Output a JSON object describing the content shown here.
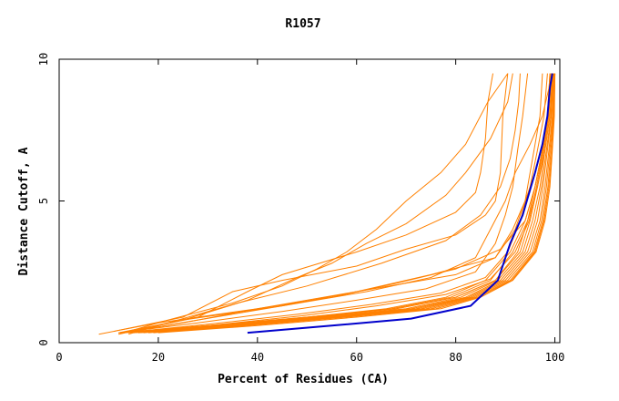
{
  "chart_data": {
    "type": "line",
    "title": "R1057",
    "xlabel": "Percent of Residues (CA)",
    "ylabel": "Distance Cutoff, A",
    "xlim": [
      0,
      101
    ],
    "ylim": [
      0,
      10
    ],
    "x_ticks": [
      0,
      20,
      40,
      60,
      80,
      100
    ],
    "y_ticks": [
      0,
      5,
      10
    ],
    "grid": false,
    "legend": "none",
    "colors": {
      "highlight": "#0000cc",
      "others": "#ff8000",
      "axis": "#000000"
    },
    "highlight": {
      "x": [
        38,
        55,
        71,
        83,
        88.5,
        91,
        93.5,
        96,
        97.5,
        98.5,
        99,
        99.5
      ],
      "y": [
        0.35,
        0.6,
        0.85,
        1.3,
        2.2,
        3.5,
        4.5,
        6.0,
        7.0,
        8.0,
        9.0,
        9.5
      ]
    },
    "series": [
      {
        "x": [
          8,
          20,
          40,
          60,
          80,
          88,
          91.5,
          94,
          96,
          97.5,
          98.6,
          99.3
        ],
        "y": [
          0.3,
          0.7,
          1.2,
          1.8,
          2.4,
          3,
          4,
          5,
          6,
          7,
          8,
          9.5
        ]
      },
      {
        "x": [
          11,
          25,
          35,
          45,
          60,
          70,
          80,
          86,
          88,
          89,
          89.5,
          90.5
        ],
        "y": [
          0.4,
          0.9,
          1.8,
          2.2,
          2.7,
          3.3,
          3.8,
          4.5,
          5,
          6,
          8,
          9.5
        ]
      },
      {
        "x": [
          13,
          28,
          38,
          45,
          60,
          70,
          80,
          84,
          85,
          86,
          86.5,
          87.5
        ],
        "y": [
          0.35,
          0.9,
          1.8,
          2.4,
          3.2,
          3.8,
          4.6,
          5.3,
          6,
          7.2,
          8.5,
          9.5
        ]
      },
      {
        "x": [
          12,
          25,
          38,
          48,
          55,
          62,
          70,
          78,
          82,
          87,
          90.5,
          91.5
        ],
        "y": [
          0.3,
          0.8,
          1.5,
          2.3,
          2.8,
          3.5,
          4.2,
          5.2,
          6,
          7.2,
          8.5,
          9.5
        ]
      },
      {
        "x": [
          12,
          25,
          45,
          60,
          75,
          88,
          92,
          94,
          95,
          96,
          97,
          97.5
        ],
        "y": [
          0.35,
          0.8,
          1.3,
          1.8,
          2.4,
          3,
          4,
          5,
          6,
          7,
          8,
          9.5
        ]
      },
      {
        "x": [
          12,
          22,
          35,
          45,
          52,
          58,
          64,
          70,
          77,
          82,
          86.5,
          90.5
        ],
        "y": [
          0.3,
          0.8,
          1.4,
          2,
          2.6,
          3.2,
          4,
          5,
          6,
          7,
          8.5,
          9.5
        ]
      },
      {
        "x": [
          13,
          25,
          40,
          55,
          68,
          80,
          89,
          94,
          96,
          97.5,
          98.5,
          99
        ],
        "y": [
          0.35,
          0.7,
          1.2,
          1.6,
          2.1,
          2.6,
          3.3,
          4.3,
          5.5,
          6.8,
          8,
          9.5
        ]
      },
      {
        "x": [
          14,
          24,
          36,
          50,
          65,
          78,
          85,
          89,
          91,
          92,
          92.7,
          93
        ],
        "y": [
          0.3,
          0.8,
          1.4,
          2,
          2.8,
          3.6,
          4.5,
          5.5,
          6.5,
          7.5,
          8.5,
          9.5
        ]
      },
      {
        "x": [
          13,
          28,
          45,
          62,
          75,
          84,
          87,
          90,
          92,
          95,
          97.5,
          99.5
        ],
        "y": [
          0.35,
          0.8,
          1.3,
          1.8,
          2.3,
          3,
          4,
          5,
          6,
          7,
          8,
          9.5
        ]
      },
      {
        "x": [
          12,
          30,
          50,
          68,
          80,
          88,
          92.5,
          94.5,
          96,
          97.5,
          98.5,
          99
        ],
        "y": [
          0.35,
          0.6,
          0.9,
          1.2,
          1.6,
          2.2,
          3.2,
          4.3,
          5.5,
          6.8,
          8,
          9.5
        ]
      },
      {
        "x": [
          12,
          30,
          50,
          68,
          80,
          88,
          93,
          95,
          96.5,
          97.8,
          98.8,
          99.3
        ],
        "y": [
          0.35,
          0.6,
          0.9,
          1.2,
          1.6,
          2.2,
          3.2,
          4.3,
          5.5,
          6.8,
          8,
          9.5
        ]
      },
      {
        "x": [
          13,
          32,
          52,
          70,
          81,
          88.5,
          93.5,
          95.5,
          97,
          98,
          99,
          99.5
        ],
        "y": [
          0.35,
          0.6,
          0.9,
          1.2,
          1.6,
          2.2,
          3.2,
          4.3,
          5.5,
          6.8,
          8,
          9.5
        ]
      },
      {
        "x": [
          14,
          33,
          53,
          71,
          82,
          89,
          94,
          96,
          97.3,
          98.3,
          99.2,
          99.6
        ],
        "y": [
          0.35,
          0.6,
          0.9,
          1.2,
          1.6,
          2.2,
          3.2,
          4.3,
          5.5,
          6.8,
          8,
          9.5
        ]
      },
      {
        "x": [
          15,
          34,
          54,
          72,
          82.5,
          89.5,
          94.5,
          96.5,
          97.6,
          98.5,
          99.3,
          99.7
        ],
        "y": [
          0.35,
          0.6,
          0.9,
          1.2,
          1.6,
          2.2,
          3.2,
          4.3,
          5.5,
          6.8,
          8,
          9.5
        ]
      },
      {
        "x": [
          16,
          35,
          55,
          73,
          83,
          90,
          95,
          97,
          98,
          98.8,
          99.5,
          99.8
        ],
        "y": [
          0.35,
          0.6,
          0.9,
          1.2,
          1.6,
          2.2,
          3.2,
          4.3,
          5.5,
          6.8,
          8,
          9.5
        ]
      },
      {
        "x": [
          17,
          36,
          56,
          74,
          83.5,
          90.5,
          95.5,
          97.3,
          98.3,
          99,
          99.6,
          99.9
        ],
        "y": [
          0.35,
          0.6,
          0.9,
          1.2,
          1.6,
          2.2,
          3.2,
          4.3,
          5.5,
          6.8,
          8,
          9.5
        ]
      },
      {
        "x": [
          18,
          37,
          57,
          75,
          84,
          91,
          95.8,
          97.6,
          98.6,
          99.2,
          99.7,
          100
        ],
        "y": [
          0.35,
          0.6,
          0.9,
          1.2,
          1.6,
          2.2,
          3.2,
          4.3,
          5.5,
          6.8,
          8,
          9.5
        ]
      },
      {
        "x": [
          19,
          38,
          58,
          76,
          84.5,
          91.3,
          96,
          97.8,
          98.8,
          99.4,
          99.8,
          100
        ],
        "y": [
          0.35,
          0.6,
          0.9,
          1.2,
          1.6,
          2.2,
          3.2,
          4.3,
          5.5,
          6.8,
          8,
          9.5
        ]
      },
      {
        "x": [
          15,
          33,
          50,
          66,
          78,
          86,
          91,
          94,
          96,
          97.5,
          98.6,
          99.2
        ],
        "y": [
          0.35,
          0.6,
          0.9,
          1.2,
          1.6,
          2.2,
          3.2,
          4.3,
          5.5,
          6.8,
          8,
          9.5
        ]
      },
      {
        "x": [
          16,
          34,
          51,
          67,
          79,
          87,
          91.5,
          94.5,
          96.5,
          98,
          99,
          99.6
        ],
        "y": [
          0.35,
          0.6,
          0.9,
          1.2,
          1.6,
          2.2,
          3.2,
          4.3,
          5.5,
          6.8,
          8,
          9.5
        ]
      },
      {
        "x": [
          12,
          28,
          45,
          60,
          74,
          84,
          88,
          90,
          91.5,
          92.5,
          93.5,
          94.5
        ],
        "y": [
          0.35,
          0.7,
          1.1,
          1.5,
          1.9,
          2.5,
          3.5,
          4.5,
          5.5,
          6.8,
          8,
          9.5
        ]
      },
      {
        "x": [
          13,
          30,
          48,
          63,
          77,
          86,
          90.5,
          93,
          95,
          96.5,
          97.8,
          98.5
        ],
        "y": [
          0.35,
          0.65,
          1,
          1.35,
          1.75,
          2.3,
          3.2,
          4.3,
          5.5,
          6.8,
          8,
          9.5
        ]
      },
      {
        "x": [
          14,
          31,
          49,
          64,
          78,
          87,
          92,
          94.8,
          96.3,
          97.6,
          98.7,
          99.4
        ],
        "y": [
          0.35,
          0.62,
          0.95,
          1.3,
          1.7,
          2.25,
          3.2,
          4.3,
          5.5,
          6.8,
          8,
          9.5
        ]
      },
      {
        "x": [
          20,
          40,
          60,
          77,
          85,
          91.5,
          96.2,
          98,
          99,
          99.5,
          99.9,
          100
        ],
        "y": [
          0.35,
          0.6,
          0.9,
          1.2,
          1.6,
          2.2,
          3.2,
          4.3,
          5.5,
          6.8,
          8,
          9.5
        ]
      }
    ]
  }
}
